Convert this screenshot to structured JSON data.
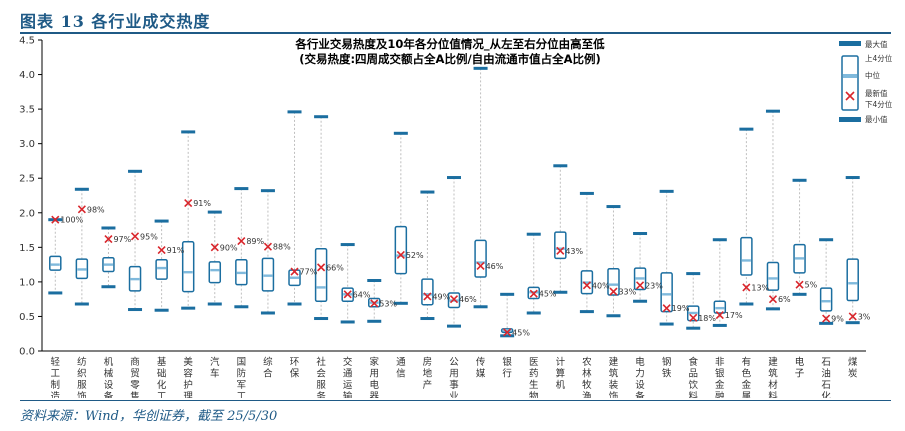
{
  "figure": {
    "title": "图表 13  各行业成交热度",
    "source": "资料来源：Wind，华创证券，截至 25/5/30"
  },
  "colors": {
    "box": "#1b6ea0",
    "median": "#7fb9dc",
    "latest": "#d9262c",
    "whisker": "#bfbfbf",
    "axis": "#000000"
  },
  "chart_data": {
    "type": "boxplot",
    "title": "各行业交易热度及10年各分位值情况_从左至右分位由高至低",
    "subtitle": "(交易热度:四周成交额占全A比例/自由流通市值占全A比例)",
    "ylim": [
      0,
      4.5
    ],
    "yticks": [
      "0.0",
      "0.5",
      "1.0",
      "1.5",
      "2.0",
      "2.5",
      "3.0",
      "3.5",
      "4.0",
      "4.5"
    ],
    "legend": {
      "position": "top-right",
      "items": [
        "最大值",
        "上4分位",
        "中位",
        "最新值",
        "下4分位",
        "最小值"
      ]
    },
    "series": [
      {
        "name": "轻工制造",
        "max": 1.9,
        "q3": 1.37,
        "median": 1.25,
        "q1": 1.17,
        "min": 0.84,
        "latest": 1.9,
        "pct": "100%"
      },
      {
        "name": "纺织服饰",
        "max": 2.34,
        "q3": 1.33,
        "median": 1.18,
        "q1": 1.05,
        "min": 0.68,
        "latest": 2.05,
        "pct": "98%"
      },
      {
        "name": "机械设备",
        "max": 1.78,
        "q3": 1.35,
        "median": 1.25,
        "q1": 1.15,
        "min": 0.93,
        "latest": 1.62,
        "pct": "97%"
      },
      {
        "name": "商贸零售",
        "max": 2.6,
        "q3": 1.22,
        "median": 1.04,
        "q1": 0.87,
        "min": 0.6,
        "latest": 1.66,
        "pct": "95%"
      },
      {
        "name": "基础化工",
        "max": 1.88,
        "q3": 1.32,
        "median": 1.2,
        "q1": 1.04,
        "min": 0.59,
        "latest": 1.46,
        "pct": "91%"
      },
      {
        "name": "美容护理",
        "max": 3.17,
        "q3": 1.58,
        "median": 1.14,
        "q1": 0.86,
        "min": 0.62,
        "latest": 2.14,
        "pct": "91%"
      },
      {
        "name": "汽车",
        "max": 2.01,
        "q3": 1.29,
        "median": 1.17,
        "q1": 0.99,
        "min": 0.68,
        "latest": 1.5,
        "pct": "90%"
      },
      {
        "name": "国防军工",
        "max": 2.35,
        "q3": 1.32,
        "median": 1.13,
        "q1": 0.96,
        "min": 0.64,
        "latest": 1.59,
        "pct": "89%"
      },
      {
        "name": "综合",
        "max": 2.32,
        "q3": 1.34,
        "median": 1.09,
        "q1": 0.87,
        "min": 0.55,
        "latest": 1.51,
        "pct": "88%"
      },
      {
        "name": "环保",
        "max": 3.46,
        "q3": 1.17,
        "median": 1.06,
        "q1": 0.95,
        "min": 0.68,
        "latest": 1.15,
        "pct": "77%"
      },
      {
        "name": "社会服务",
        "max": 3.39,
        "q3": 1.48,
        "median": 0.92,
        "q1": 0.72,
        "min": 0.47,
        "latest": 1.21,
        "pct": "66%"
      },
      {
        "name": "交通运输",
        "max": 1.54,
        "q3": 0.91,
        "median": 0.82,
        "q1": 0.72,
        "min": 0.42,
        "latest": 0.82,
        "pct": "64%"
      },
      {
        "name": "家用电器",
        "max": 1.02,
        "q3": 0.76,
        "median": 0.7,
        "q1": 0.64,
        "min": 0.43,
        "latest": 0.69,
        "pct": "53%"
      },
      {
        "name": "通信",
        "max": 3.15,
        "q3": 1.8,
        "median": 1.38,
        "q1": 1.12,
        "min": 0.69,
        "latest": 1.39,
        "pct": "52%"
      },
      {
        "name": "房地产",
        "max": 2.3,
        "q3": 1.04,
        "median": 0.82,
        "q1": 0.67,
        "min": 0.47,
        "latest": 0.79,
        "pct": "49%"
      },
      {
        "name": "公用事业",
        "max": 2.51,
        "q3": 0.84,
        "median": 0.73,
        "q1": 0.63,
        "min": 0.36,
        "latest": 0.75,
        "pct": "46%"
      },
      {
        "name": "传媒",
        "max": 4.09,
        "q3": 1.6,
        "median": 1.28,
        "q1": 1.07,
        "min": 0.64,
        "latest": 1.23,
        "pct": "46%"
      },
      {
        "name": "银行",
        "max": 0.82,
        "q3": 0.32,
        "median": 0.3,
        "q1": 0.27,
        "min": 0.22,
        "latest": 0.27,
        "pct": "45%"
      },
      {
        "name": "医药生物",
        "max": 1.69,
        "q3": 0.92,
        "median": 0.85,
        "q1": 0.76,
        "min": 0.55,
        "latest": 0.83,
        "pct": "45%"
      },
      {
        "name": "计算机",
        "max": 2.68,
        "q3": 1.72,
        "median": 1.48,
        "q1": 1.34,
        "min": 0.85,
        "latest": 1.45,
        "pct": "43%"
      },
      {
        "name": "农林牧渔",
        "max": 2.28,
        "q3": 1.16,
        "median": 0.99,
        "q1": 0.83,
        "min": 0.57,
        "latest": 0.95,
        "pct": "40%"
      },
      {
        "name": "建筑装饰",
        "max": 2.09,
        "q3": 1.19,
        "median": 0.96,
        "q1": 0.81,
        "min": 0.51,
        "latest": 0.86,
        "pct": "33%"
      },
      {
        "name": "电力设备",
        "max": 1.7,
        "q3": 1.2,
        "median": 1.05,
        "q1": 0.89,
        "min": 0.72,
        "latest": 0.95,
        "pct": "23%"
      },
      {
        "name": "钢铁",
        "max": 2.31,
        "q3": 1.13,
        "median": 0.82,
        "q1": 0.57,
        "min": 0.39,
        "latest": 0.62,
        "pct": "19%"
      },
      {
        "name": "食品饮料",
        "max": 1.12,
        "q3": 0.65,
        "median": 0.55,
        "q1": 0.44,
        "min": 0.33,
        "latest": 0.48,
        "pct": "18%"
      },
      {
        "name": "非银金融",
        "max": 1.61,
        "q3": 0.72,
        "median": 0.62,
        "q1": 0.55,
        "min": 0.37,
        "latest": 0.52,
        "pct": "17%"
      },
      {
        "name": "有色金属",
        "max": 3.21,
        "q3": 1.64,
        "median": 1.31,
        "q1": 1.1,
        "min": 0.68,
        "latest": 0.92,
        "pct": "13%"
      },
      {
        "name": "建筑材料",
        "max": 3.47,
        "q3": 1.28,
        "median": 1.05,
        "q1": 0.88,
        "min": 0.61,
        "latest": 0.75,
        "pct": "6%"
      },
      {
        "name": "电子",
        "max": 2.47,
        "q3": 1.54,
        "median": 1.34,
        "q1": 1.13,
        "min": 0.82,
        "latest": 0.96,
        "pct": "5%"
      },
      {
        "name": "石油石化",
        "max": 1.61,
        "q3": 0.91,
        "median": 0.72,
        "q1": 0.58,
        "min": 0.4,
        "latest": 0.47,
        "pct": "9%"
      },
      {
        "name": "煤炭",
        "max": 2.51,
        "q3": 1.33,
        "median": 0.98,
        "q1": 0.73,
        "min": 0.41,
        "latest": 0.5,
        "pct": "3%"
      }
    ]
  }
}
